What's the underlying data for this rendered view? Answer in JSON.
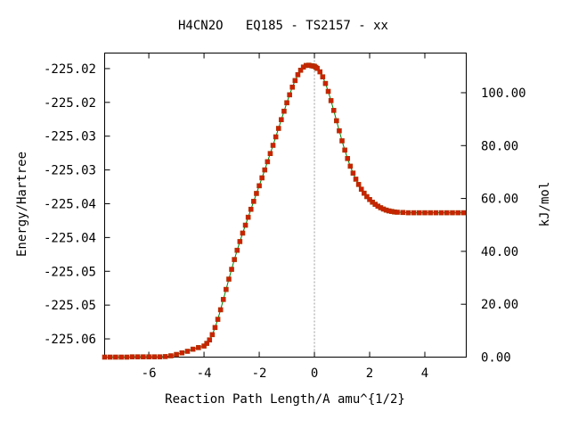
{
  "chart_data": {
    "type": "line",
    "title": "H4CN2O   EQ185 - TS2157 - xx",
    "xlabel": "Reaction Path Length/A amu^{1/2}",
    "ylabel_left": "Energy/Hartree",
    "ylabel_right": "kJ/mol",
    "xlim": [
      -7.6,
      5.5
    ],
    "ylim_hartree": [
      -225.0622,
      -225.0172
    ],
    "ylim_kjmol": [
      0,
      115
    ],
    "x_ticks": [
      -6,
      -4,
      -2,
      0,
      2,
      4
    ],
    "x_tick_labels": [
      "-6",
      "-4",
      "-2",
      "0",
      "2",
      "4"
    ],
    "y_left_ticks": [
      -225.0195,
      -225.0245,
      -225.0295,
      -225.0345,
      -225.0395,
      -225.0445,
      -225.0495,
      -225.0545,
      -225.0595
    ],
    "y_left_tick_labels": [
      "-225.02",
      "-225.02",
      "-225.03",
      "-225.03",
      "-225.04",
      "-225.04",
      "-225.05",
      "-225.05",
      "-225.06"
    ],
    "y_right_ticks": [
      0,
      20,
      40,
      60,
      80,
      100
    ],
    "y_right_tick_labels": [
      "0.00",
      "20.00",
      "40.00",
      "60.00",
      "80.00",
      "100.00"
    ],
    "ts_marker_x": 0,
    "colors": {
      "line": "#008000",
      "marker": "#cc2200",
      "ts_line": "#999999",
      "axis": "#000000"
    },
    "grid": false,
    "legend": "none",
    "series": [
      {
        "x": [
          -7.6,
          -7.4,
          -7.2,
          -7.0,
          -6.8,
          -6.6,
          -6.4,
          -6.2,
          -6.0,
          -5.8,
          -5.6,
          -5.4,
          -5.2,
          -5.0,
          -4.8,
          -4.6,
          -4.4,
          -4.2,
          -4.0,
          -3.9,
          -3.8,
          -3.7,
          -3.6,
          -3.5,
          -3.4,
          -3.3,
          -3.2,
          -3.1,
          -3.0,
          -2.9,
          -2.8,
          -2.7,
          -2.6,
          -2.5,
          -2.4,
          -2.3,
          -2.2,
          -2.1,
          -2.0,
          -1.9,
          -1.8,
          -1.7,
          -1.6,
          -1.5,
          -1.4,
          -1.3,
          -1.2,
          -1.1,
          -1.0,
          -0.9,
          -0.8,
          -0.7,
          -0.6,
          -0.5,
          -0.4,
          -0.3,
          -0.2,
          -0.1,
          -0.05,
          0.0,
          0.05,
          0.1,
          0.2,
          0.3,
          0.4,
          0.5,
          0.6,
          0.7,
          0.8,
          0.9,
          1.0,
          1.1,
          1.2,
          1.3,
          1.4,
          1.5,
          1.6,
          1.7,
          1.8,
          1.9,
          2.0,
          2.1,
          2.2,
          2.3,
          2.4,
          2.5,
          2.6,
          2.7,
          2.8,
          2.9,
          3.0,
          3.2,
          3.4,
          3.6,
          3.8,
          4.0,
          4.2,
          4.4,
          4.6,
          4.8,
          5.0,
          5.2,
          5.4
        ],
        "y_kjmol": [
          0.0,
          0.0,
          0.0,
          0.0,
          0.0,
          0.1,
          0.1,
          0.1,
          0.1,
          0.1,
          0.1,
          0.2,
          0.5,
          1.0,
          1.6,
          2.2,
          3.0,
          3.6,
          4.2,
          5.2,
          6.5,
          8.5,
          11.2,
          14.3,
          17.9,
          21.8,
          25.6,
          29.5,
          33.2,
          36.9,
          40.4,
          43.7,
          46.9,
          49.9,
          52.9,
          55.9,
          58.9,
          61.9,
          64.8,
          67.8,
          70.8,
          73.9,
          77.0,
          80.1,
          83.3,
          86.5,
          89.8,
          93.0,
          96.2,
          99.2,
          102.1,
          104.6,
          106.8,
          108.5,
          109.7,
          110.3,
          110.4,
          110.2,
          110.1,
          110.0,
          109.6,
          109.2,
          107.9,
          106.0,
          103.5,
          100.5,
          97.0,
          93.3,
          89.4,
          85.6,
          81.8,
          78.3,
          75.1,
          72.2,
          69.6,
          67.3,
          65.3,
          63.5,
          62.0,
          60.7,
          59.6,
          58.6,
          57.8,
          57.1,
          56.5,
          56.0,
          55.6,
          55.3,
          55.1,
          54.9,
          54.8,
          54.7,
          54.6,
          54.6,
          54.6,
          54.6,
          54.6,
          54.6,
          54.6,
          54.6,
          54.6,
          54.6,
          54.6
        ]
      }
    ]
  }
}
